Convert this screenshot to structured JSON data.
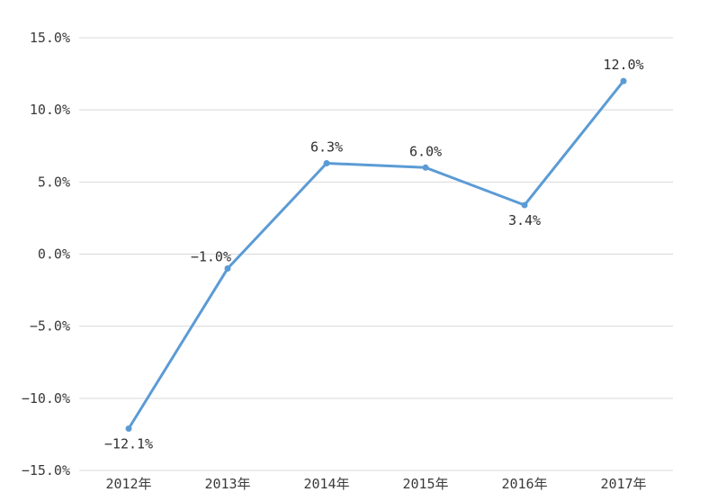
{
  "page": {
    "background_color": "#ffffff"
  },
  "chart_data": {
    "type": "line",
    "title": "",
    "xlabel": "",
    "ylabel": "",
    "categories": [
      "2012年",
      "2013年",
      "2014年",
      "2015年",
      "2016年",
      "2017年"
    ],
    "values": [
      -12.1,
      -1.0,
      6.3,
      6.0,
      3.4,
      12.0
    ],
    "data_labels": [
      "−12.1%",
      "−1.0%",
      "6.3%",
      "6.0%",
      "3.4%",
      "12.0%"
    ],
    "label_placement": [
      "below",
      "above-left",
      "above",
      "above",
      "below",
      "above"
    ],
    "ylim": [
      -15,
      15
    ],
    "ytick_step": 5,
    "ytick_labels": [
      "15.0%",
      "10.0%",
      "5.0%",
      "0.0%",
      "−5.0%",
      "−10.0%",
      "−15.0%"
    ],
    "grid": true,
    "legend": false,
    "colors": {
      "line": "#5B9BD5",
      "marker": "#5B9BD5",
      "gridline": "#D9D9D9",
      "tick_text": "#3a3a3a",
      "label_text": "#2f2f2f"
    }
  }
}
